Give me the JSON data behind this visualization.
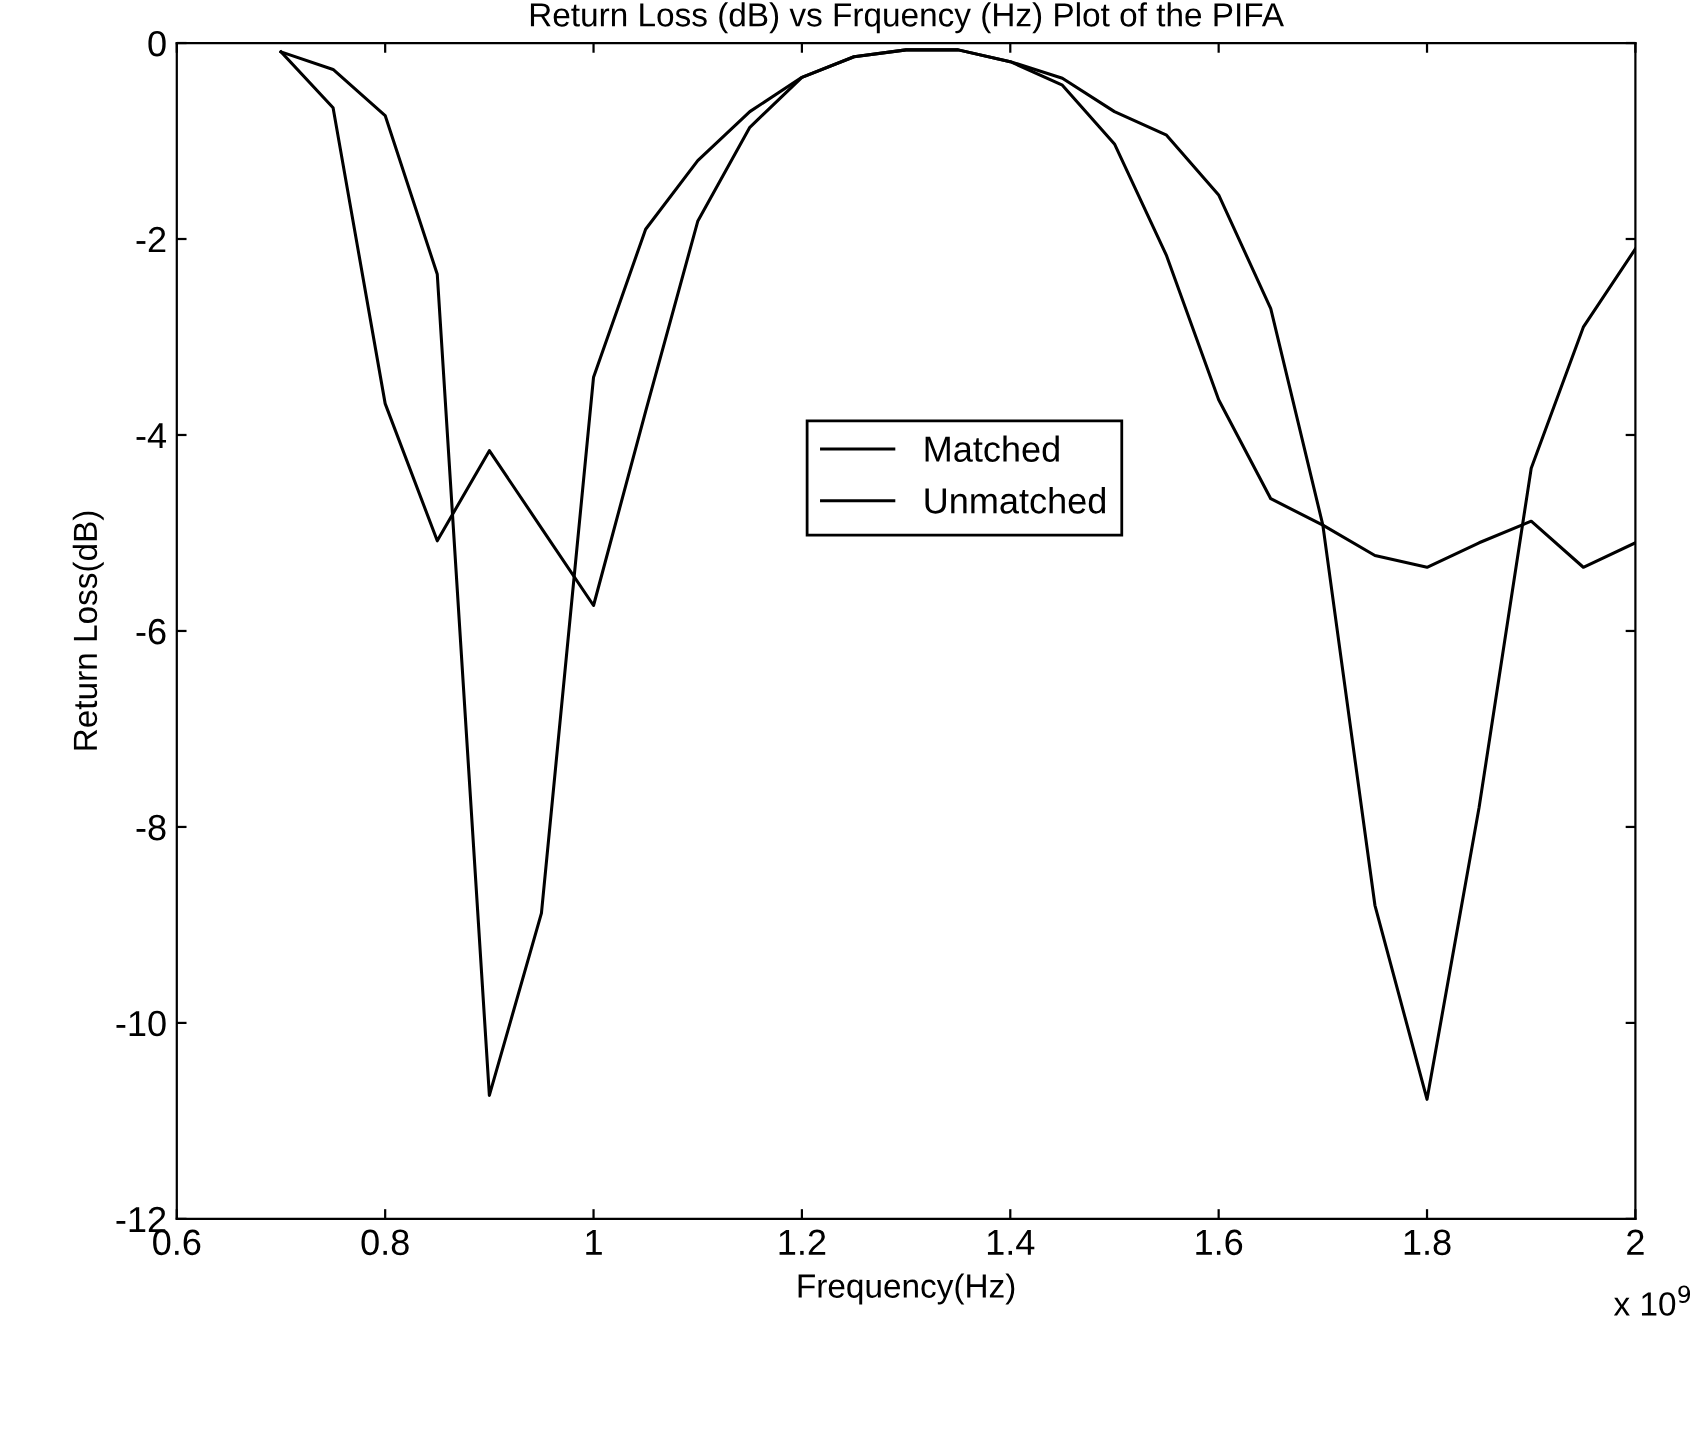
{
  "chart_data": {
    "type": "line",
    "title": "Return Loss (dB) vs Frquency (Hz) Plot of the PIFA",
    "xlabel": "Frequency(Hz)",
    "ylabel": "Return Loss(dB)",
    "x": [
      0.7,
      0.75,
      0.8,
      0.85,
      0.9,
      0.95,
      1.0,
      1.05,
      1.1,
      1.15,
      1.2,
      1.25,
      1.3,
      1.35,
      1.4,
      1.45,
      1.5,
      1.55,
      1.6,
      1.65,
      1.7,
      1.75,
      1.8,
      1.85,
      1.9,
      1.95,
      2.0
    ],
    "series": [
      {
        "name": "Matched",
        "color": "#000000",
        "values": [
          -0.09,
          -0.27,
          -0.74,
          -2.36,
          -10.74,
          -8.88,
          -3.41,
          -1.9,
          -1.2,
          -0.7,
          -0.35,
          -0.14,
          -0.07,
          -0.07,
          -0.19,
          -0.36,
          -0.7,
          -0.94,
          -1.55,
          -2.71,
          -4.92,
          -8.8,
          -10.78,
          -7.8,
          -4.34,
          -2.9,
          -2.1
        ]
      },
      {
        "name": "Unmatched",
        "color": "#000000",
        "values": [
          -0.09,
          -0.66,
          -3.68,
          -5.08,
          -4.16,
          -4.95,
          -5.74,
          -3.76,
          -1.82,
          -0.86,
          -0.35,
          -0.14,
          -0.07,
          -0.07,
          -0.19,
          -0.43,
          -1.03,
          -2.17,
          -3.64,
          -4.65,
          -4.92,
          -5.23,
          -5.35,
          -5.1,
          -4.88,
          -5.35,
          -5.1
        ]
      }
    ],
    "xlim": [
      0.6,
      2
    ],
    "xticks": [
      0.6,
      0.8,
      1,
      1.2,
      1.4,
      1.6,
      1.8,
      2
    ],
    "ylim": [
      -12,
      0
    ],
    "yticks": [
      -12,
      -10,
      -8,
      -6,
      -4,
      -2,
      0
    ],
    "annotations": [
      "x 10$^{9}$"
    ],
    "legend": "center",
    "grid": false,
    "marker": "none",
    "line_style": "solid"
  }
}
